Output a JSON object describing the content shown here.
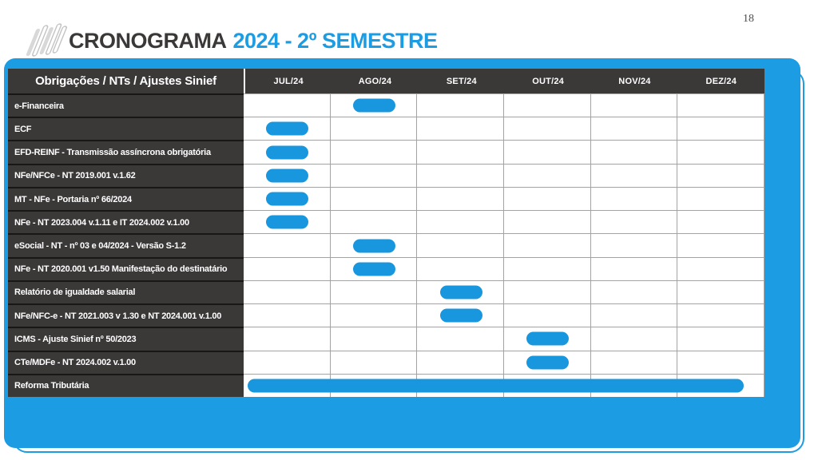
{
  "page": {
    "number": "18"
  },
  "title": {
    "prefix": "CRONOGRAMA",
    "highlight": "2024 - 2º SEMESTRE"
  },
  "colors": {
    "accent_blue": "#1B9CE3",
    "bar_blue": "#1897DF",
    "header_dark": "#3B3838",
    "grid_line": "#A3A3A3"
  },
  "icons": {
    "logo": "hatch-slashes-logo"
  },
  "table": {
    "corner_header": "Obrigações / NTs / Ajustes Sinief",
    "months": [
      "JUL/24",
      "AGO/24",
      "SET/24",
      "OUT/24",
      "NOV/24",
      "DEZ/24"
    ],
    "rows": [
      {
        "label": "e-Financeira",
        "bar": {
          "month": "AGO/24",
          "month_index": 1,
          "span": 1
        }
      },
      {
        "label": "ECF",
        "bar": {
          "month": "JUL/24",
          "month_index": 0,
          "span": 1
        }
      },
      {
        "label": "EFD-REINF - Transmissão assíncrona obrigatória",
        "bar": {
          "month": "JUL/24",
          "month_index": 0,
          "span": 1
        }
      },
      {
        "label": "NFe/NFCe - NT 2019.001 v.1.62",
        "bar": {
          "month": "JUL/24",
          "month_index": 0,
          "span": 1
        }
      },
      {
        "label": "MT - NFe - Portaria nº 66/2024",
        "bar": {
          "month": "JUL/24",
          "month_index": 0,
          "span": 1
        }
      },
      {
        "label": "NFe - NT 2023.004 v.1.11 e  IT 2024.002 v.1.00",
        "bar": {
          "month": "JUL/24",
          "month_index": 0,
          "span": 1
        }
      },
      {
        "label": "eSocial - NT - nº 03 e 04/2024 - Versão S-1.2",
        "bar": {
          "month": "AGO/24",
          "month_index": 1,
          "span": 1
        }
      },
      {
        "label": "NFe - NT 2020.001 v1.50 Manifestação do destinatário",
        "bar": {
          "month": "AGO/24",
          "month_index": 1,
          "span": 1
        }
      },
      {
        "label": "Relatório de igualdade salarial",
        "bar": {
          "month": "SET/24",
          "month_index": 2,
          "span": 1
        }
      },
      {
        "label": "NFe/NFC-e - NT 2021.003 v 1.30 e NT 2024.001 v.1.00",
        "bar": {
          "month": "SET/24",
          "month_index": 2,
          "span": 1
        }
      },
      {
        "label": "ICMS - Ajuste Sinief nº 50/2023",
        "bar": {
          "month": "OUT/24",
          "month_index": 3,
          "span": 1
        }
      },
      {
        "label": "CTe/MDFe - NT 2024.002 v.1.00",
        "bar": {
          "month": "OUT/24",
          "month_index": 3,
          "span": 1
        }
      },
      {
        "label": "Reforma Tributária",
        "bar": {
          "month": "JUL/24",
          "month_index": 0,
          "span": 6
        }
      }
    ]
  },
  "chart_data": {
    "type": "bar",
    "subtype": "gantt",
    "title": "CRONOGRAMA 2024 - 2º SEMESTRE",
    "x_categories": [
      "JUL/24",
      "AGO/24",
      "SET/24",
      "OUT/24",
      "NOV/24",
      "DEZ/24"
    ],
    "legend": "none",
    "grid": true,
    "tasks": [
      {
        "name": "e-Financeira",
        "start": "AGO/24",
        "end": "AGO/24"
      },
      {
        "name": "ECF",
        "start": "JUL/24",
        "end": "JUL/24"
      },
      {
        "name": "EFD-REINF - Transmissão assíncrona obrigatória",
        "start": "JUL/24",
        "end": "JUL/24"
      },
      {
        "name": "NFe/NFCe - NT 2019.001 v.1.62",
        "start": "JUL/24",
        "end": "JUL/24"
      },
      {
        "name": "MT - NFe - Portaria nº 66/2024",
        "start": "JUL/24",
        "end": "JUL/24"
      },
      {
        "name": "NFe - NT 2023.004 v.1.11 e  IT 2024.002 v.1.00",
        "start": "JUL/24",
        "end": "JUL/24"
      },
      {
        "name": "eSocial - NT - nº 03 e 04/2024 - Versão S-1.2",
        "start": "AGO/24",
        "end": "AGO/24"
      },
      {
        "name": "NFe - NT 2020.001 v1.50 Manifestação do destinatário",
        "start": "AGO/24",
        "end": "AGO/24"
      },
      {
        "name": "Relatório de igualdade salarial",
        "start": "SET/24",
        "end": "SET/24"
      },
      {
        "name": "NFe/NFC-e - NT 2021.003 v 1.30 e NT 2024.001 v.1.00",
        "start": "SET/24",
        "end": "SET/24"
      },
      {
        "name": "ICMS - Ajuste Sinief nº 50/2023",
        "start": "OUT/24",
        "end": "OUT/24"
      },
      {
        "name": "CTe/MDFe - NT 2024.002 v.1.00",
        "start": "OUT/24",
        "end": "OUT/24"
      },
      {
        "name": "Reforma Tributária",
        "start": "JUL/24",
        "end": "DEZ/24"
      }
    ]
  }
}
